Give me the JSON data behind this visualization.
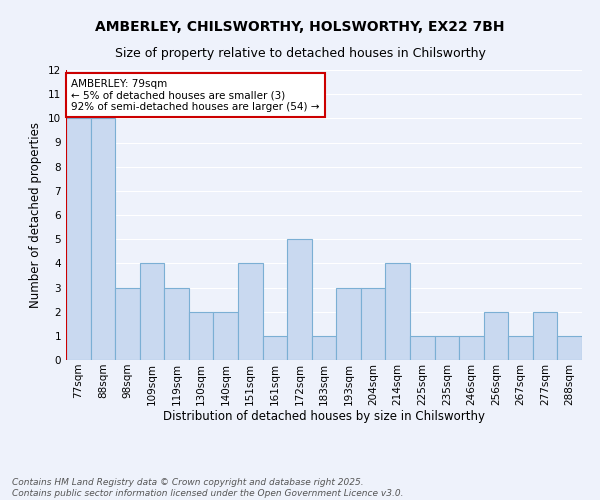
{
  "title_line1": "AMBERLEY, CHILSWORTHY, HOLSWORTHY, EX22 7BH",
  "title_line2": "Size of property relative to detached houses in Chilsworthy",
  "xlabel": "Distribution of detached houses by size in Chilsworthy",
  "ylabel": "Number of detached properties",
  "categories": [
    "77sqm",
    "88sqm",
    "98sqm",
    "109sqm",
    "119sqm",
    "130sqm",
    "140sqm",
    "151sqm",
    "161sqm",
    "172sqm",
    "183sqm",
    "193sqm",
    "204sqm",
    "214sqm",
    "225sqm",
    "235sqm",
    "246sqm",
    "256sqm",
    "267sqm",
    "277sqm",
    "288sqm"
  ],
  "values": [
    10,
    10,
    3,
    4,
    3,
    2,
    2,
    4,
    1,
    5,
    1,
    3,
    3,
    4,
    1,
    1,
    1,
    2,
    1,
    2,
    1
  ],
  "bar_color": "#c9d9f0",
  "bar_edge_color": "#7bafd4",
  "ylim": [
    0,
    12
  ],
  "yticks": [
    0,
    1,
    2,
    3,
    4,
    5,
    6,
    7,
    8,
    9,
    10,
    11,
    12
  ],
  "marker_color": "#cc0000",
  "annotation_title": "AMBERLEY: 79sqm",
  "annotation_line1": "← 5% of detached houses are smaller (3)",
  "annotation_line2": "92% of semi-detached houses are larger (54) →",
  "annotation_box_color": "#cc0000",
  "footnote1": "Contains HM Land Registry data © Crown copyright and database right 2025.",
  "footnote2": "Contains public sector information licensed under the Open Government Licence v3.0.",
  "background_color": "#eef2fb",
  "grid_color": "#ffffff",
  "title_fontsize": 10,
  "subtitle_fontsize": 9,
  "axis_label_fontsize": 8.5,
  "tick_fontsize": 7.5,
  "annotation_fontsize": 7.5,
  "footnote_fontsize": 6.5
}
